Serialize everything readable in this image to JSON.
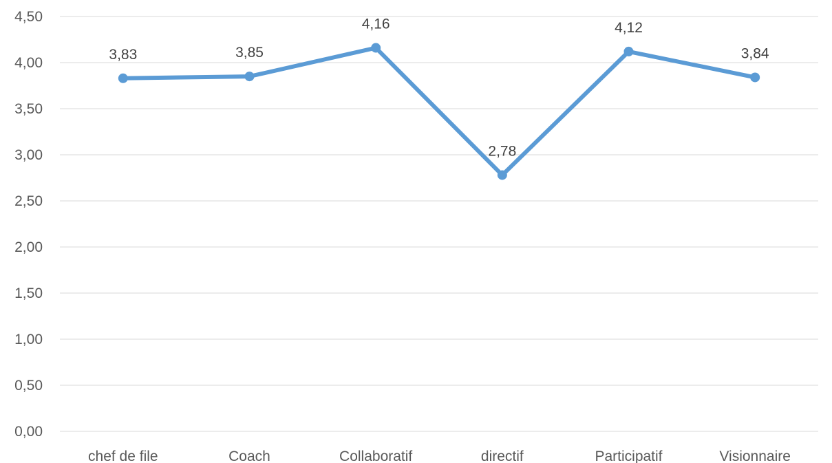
{
  "chart_data": {
    "type": "line",
    "title": "",
    "xlabel": "",
    "ylabel": "",
    "categories": [
      "chef de file",
      "Coach",
      "Collaboratif",
      "directif",
      "Participatif",
      "Visionnaire"
    ],
    "series": [
      {
        "values": [
          3.83,
          3.85,
          4.16,
          2.78,
          4.12,
          3.84
        ],
        "data_labels": [
          "3,83",
          "3,85",
          "4,16",
          "2,78",
          "4,12",
          "3,84"
        ],
        "color": "#5b9bd5"
      }
    ],
    "ylim": [
      0,
      4.5
    ],
    "y_ticks": [
      0,
      0.5,
      1.0,
      1.5,
      2.0,
      2.5,
      3.0,
      3.5,
      4.0,
      4.5
    ],
    "y_tick_labels": [
      "0,00",
      "0,50",
      "1,00",
      "1,50",
      "2,00",
      "2,50",
      "3,00",
      "3,50",
      "4,00",
      "4,50"
    ],
    "grid": true,
    "legend": "none",
    "colors": {
      "line": "#5b9bd5",
      "grid": "#d9d9d9",
      "axis_text": "#595959",
      "label_text": "#404040"
    }
  }
}
